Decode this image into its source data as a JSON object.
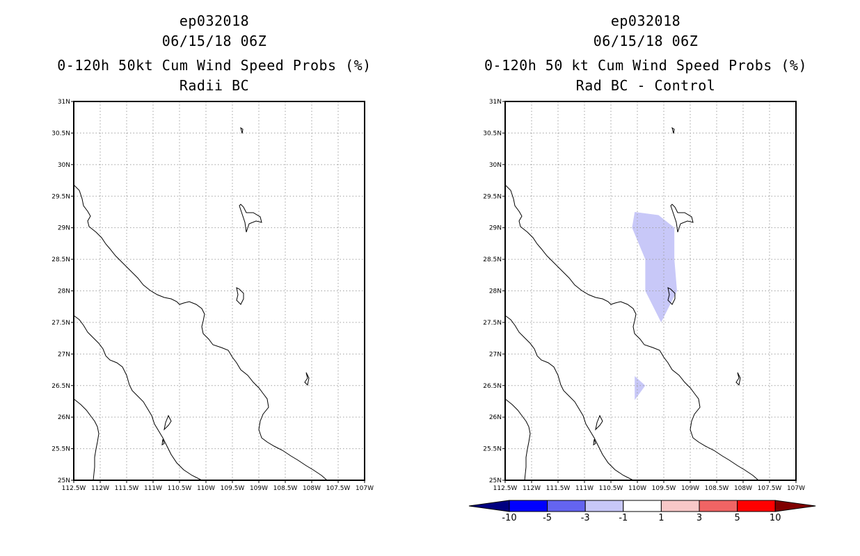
{
  "left_panel": {
    "storm_id": "ep032018",
    "datetime": "06/15/18 06Z",
    "product": "0-120h 50kt Cum Wind Speed Probs (%)",
    "subtitle": "Radii BC"
  },
  "right_panel": {
    "storm_id": "ep032018",
    "datetime": "06/15/18 06Z",
    "product": "0-120h 50 kt Cum Wind Speed Probs (%)",
    "subtitle": "Rad BC - Control"
  },
  "chart_data": [
    {
      "type": "map",
      "title": "0-120h 50kt Cum Wind Speed Probs (%)",
      "subtitle": "Radii BC",
      "xlim": [
        -112.5,
        -107.0
      ],
      "ylim": [
        25.0,
        31.0
      ],
      "x_ticks": [
        -112.5,
        -112,
        -111.5,
        -111,
        -110.5,
        -110,
        -109.5,
        -109,
        -108.5,
        -108,
        -107.5,
        -107
      ],
      "x_tick_labels": [
        "112.5W",
        "112W",
        "111.5W",
        "111W",
        "110.5W",
        "110W",
        "109.5W",
        "109W",
        "108.5W",
        "108W",
        "107.5W",
        "107W"
      ],
      "y_ticks": [
        25,
        25.5,
        26,
        26.5,
        27,
        27.5,
        28,
        28.5,
        29,
        29.5,
        30,
        30.5,
        31
      ],
      "y_tick_labels": [
        "25N",
        "25.5N",
        "26N",
        "26.5N",
        "27N",
        "27.5N",
        "28N",
        "28.5N",
        "29N",
        "29.5N",
        "30N",
        "30.5N",
        "31N"
      ],
      "grid": true,
      "shaded_regions": []
    },
    {
      "type": "map",
      "title": "0-120h 50 kt Cum Wind Speed Probs (%)",
      "subtitle": "Rad BC - Control",
      "xlim": [
        -112.5,
        -107.0
      ],
      "ylim": [
        25.0,
        31.0
      ],
      "x_ticks": [
        -112.5,
        -112,
        -111.5,
        -111,
        -110.5,
        -110,
        -109.5,
        -109,
        -108.5,
        -108,
        -107.5,
        -107
      ],
      "x_tick_labels": [
        "112.5W",
        "112W",
        "111.5W",
        "111W",
        "110.5W",
        "110W",
        "109.5W",
        "109W",
        "108.5W",
        "108W",
        "107.5W",
        "107W"
      ],
      "y_ticks": [
        25,
        25.5,
        26,
        26.5,
        27,
        27.5,
        28,
        28.5,
        29,
        29.5,
        30,
        30.5,
        31
      ],
      "y_tick_labels": [
        "25N",
        "25.5N",
        "26N",
        "26.5N",
        "27N",
        "27.5N",
        "28N",
        "28.5N",
        "29N",
        "29.5N",
        "30N",
        "30.5N",
        "31N"
      ],
      "grid": true,
      "shaded_regions": [
        {
          "name": "diff-region-north",
          "bin": "-3 to -1",
          "color": "#c8c8f8",
          "polygon": [
            [
              -110.1,
              29.0
            ],
            [
              -110.05,
              29.25
            ],
            [
              -109.6,
              29.2
            ],
            [
              -109.3,
              29.0
            ],
            [
              -109.3,
              28.5
            ],
            [
              -109.25,
              28.0
            ],
            [
              -109.55,
              27.5
            ],
            [
              -109.85,
              28.0
            ],
            [
              -109.85,
              28.5
            ],
            [
              -110.1,
              29.0
            ]
          ]
        },
        {
          "name": "diff-region-south",
          "bin": "-3 to -1",
          "color": "#c8c8f8",
          "polygon": [
            [
              -110.05,
              26.65
            ],
            [
              -109.85,
              26.5
            ],
            [
              -110.05,
              26.27
            ],
            [
              -110.05,
              26.65
            ]
          ]
        }
      ],
      "colorbar": {
        "levels": [
          "-10",
          "-5",
          "-3",
          "-1",
          "1",
          "3",
          "5",
          "10"
        ],
        "colors": [
          "#000080",
          "#0000ff",
          "#6464f0",
          "#c8c8f8",
          "#ffffff",
          "#f8c8c8",
          "#f06464",
          "#ff0000",
          "#800000"
        ]
      }
    }
  ]
}
